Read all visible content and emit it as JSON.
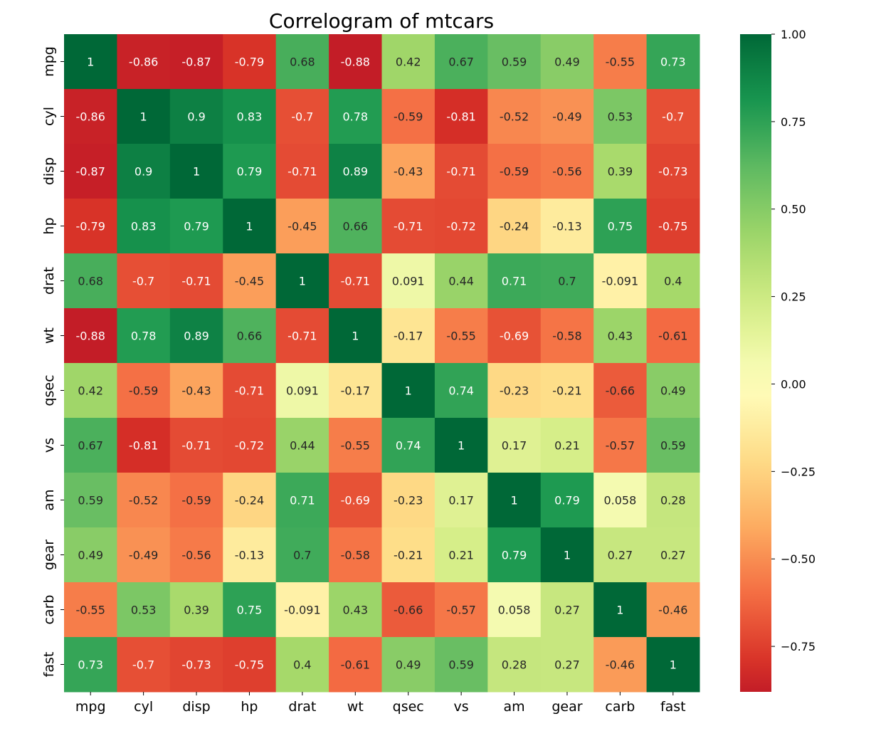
{
  "chart_data": {
    "type": "heatmap",
    "title": "Correlogram of mtcars",
    "xlabel": "",
    "ylabel": "",
    "x_categories": [
      "mpg",
      "cyl",
      "disp",
      "hp",
      "drat",
      "wt",
      "qsec",
      "vs",
      "am",
      "gear",
      "carb",
      "fast"
    ],
    "y_categories": [
      "mpg",
      "cyl",
      "disp",
      "hp",
      "drat",
      "wt",
      "qsec",
      "vs",
      "am",
      "gear",
      "carb",
      "fast"
    ],
    "values": [
      [
        1,
        -0.86,
        -0.87,
        -0.79,
        0.68,
        -0.88,
        0.42,
        0.67,
        0.59,
        0.49,
        -0.55,
        0.73
      ],
      [
        -0.86,
        1,
        0.9,
        0.83,
        -0.7,
        0.78,
        -0.59,
        -0.81,
        -0.52,
        -0.49,
        0.53,
        -0.7
      ],
      [
        -0.87,
        0.9,
        1,
        0.79,
        -0.71,
        0.89,
        -0.43,
        -0.71,
        -0.59,
        -0.56,
        0.39,
        -0.73
      ],
      [
        -0.79,
        0.83,
        0.79,
        1,
        -0.45,
        0.66,
        -0.71,
        -0.72,
        -0.24,
        -0.13,
        0.75,
        -0.75
      ],
      [
        0.68,
        -0.7,
        -0.71,
        -0.45,
        1,
        -0.71,
        0.091,
        0.44,
        0.71,
        0.7,
        -0.091,
        0.4
      ],
      [
        -0.88,
        0.78,
        0.89,
        0.66,
        -0.71,
        1,
        -0.17,
        -0.55,
        -0.69,
        -0.58,
        0.43,
        -0.61
      ],
      [
        0.42,
        -0.59,
        -0.43,
        -0.71,
        0.091,
        -0.17,
        1,
        0.74,
        -0.23,
        -0.21,
        -0.66,
        0.49
      ],
      [
        0.67,
        -0.81,
        -0.71,
        -0.72,
        0.44,
        -0.55,
        0.74,
        1,
        0.17,
        0.21,
        -0.57,
        0.59
      ],
      [
        0.59,
        -0.52,
        -0.59,
        -0.24,
        0.71,
        -0.69,
        -0.23,
        0.17,
        1,
        0.79,
        0.058,
        0.28
      ],
      [
        0.49,
        -0.49,
        -0.56,
        -0.13,
        0.7,
        -0.58,
        -0.21,
        0.21,
        0.79,
        1,
        0.27,
        0.27
      ],
      [
        -0.55,
        0.53,
        0.39,
        0.75,
        -0.091,
        0.43,
        -0.66,
        -0.57,
        0.058,
        0.27,
        1,
        -0.46
      ],
      [
        0.73,
        -0.7,
        -0.73,
        -0.75,
        0.4,
        -0.61,
        0.49,
        0.59,
        0.28,
        0.27,
        -0.46,
        1
      ]
    ],
    "colormap": "RdYlGn",
    "colorbar": {
      "vmin": -0.88,
      "vmax": 1.0,
      "ticks": [
        1.0,
        0.75,
        0.5,
        0.25,
        0.0,
        -0.25,
        -0.5,
        -0.75
      ],
      "tick_labels": [
        "1.00",
        "0.75",
        "0.50",
        "0.25",
        "0.00",
        "−0.25",
        "−0.50",
        "−0.75"
      ]
    },
    "annotations": true,
    "grid": false,
    "legend": "colorbar-right"
  }
}
